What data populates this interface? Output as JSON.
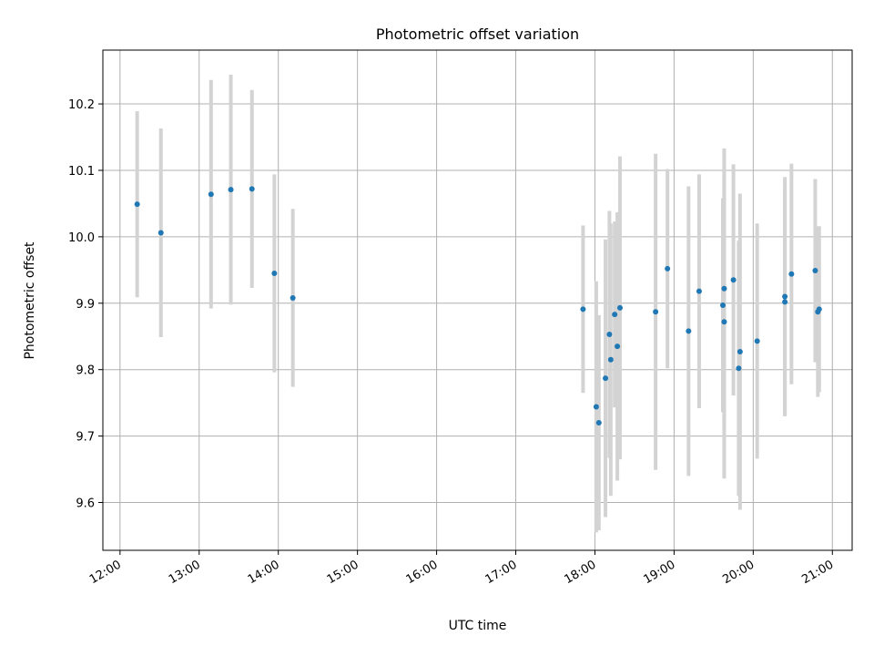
{
  "chart_data": {
    "type": "scatter",
    "title": "Photometric offset variation",
    "xlabel": "UTC time",
    "ylabel": "Photometric offset",
    "x_unit": "UTC time (HH:MM)",
    "xlim": [
      "11:47",
      "21:15"
    ],
    "ylim": [
      9.528,
      10.281
    ],
    "x_ticks": [
      "12:00",
      "13:00",
      "14:00",
      "15:00",
      "16:00",
      "17:00",
      "18:00",
      "19:00",
      "20:00",
      "21:00"
    ],
    "y_ticks": [
      9.6,
      9.7,
      9.8,
      9.9,
      10.0,
      10.1,
      10.2
    ],
    "y_tick_labels": [
      "9.6",
      "9.7",
      "9.8",
      "9.9",
      "10.0",
      "10.1",
      "10.2"
    ],
    "grid": true,
    "colors": {
      "points": "#1f77b4",
      "errorbars": "#d3d3d3",
      "grid": "#b0b0b0"
    },
    "points": [
      {
        "x": "12:13",
        "y": 10.049,
        "yerr": 0.14
      },
      {
        "x": "12:31",
        "y": 10.006,
        "yerr": 0.157
      },
      {
        "x": "13:09",
        "y": 10.064,
        "yerr": 0.172
      },
      {
        "x": "13:24",
        "y": 10.071,
        "yerr": 0.173
      },
      {
        "x": "13:40",
        "y": 10.072,
        "yerr": 0.149
      },
      {
        "x": "13:57",
        "y": 9.945,
        "yerr": 0.149
      },
      {
        "x": "14:11",
        "y": 9.908,
        "yerr": 0.134
      },
      {
        "x": "17:51",
        "y": 9.891,
        "yerr": 0.126
      },
      {
        "x": "18:01",
        "y": 9.744,
        "yerr": 0.189
      },
      {
        "x": "18:03",
        "y": 9.72,
        "yerr": 0.162
      },
      {
        "x": "18:08",
        "y": 9.787,
        "yerr": 0.209
      },
      {
        "x": "18:11",
        "y": 9.853,
        "yerr": 0.186
      },
      {
        "x": "18:12",
        "y": 9.815,
        "yerr": 0.205
      },
      {
        "x": "18:15",
        "y": 9.883,
        "yerr": 0.14
      },
      {
        "x": "18:17",
        "y": 9.835,
        "yerr": 0.202
      },
      {
        "x": "18:19",
        "y": 9.893,
        "yerr": 0.228
      },
      {
        "x": "18:46",
        "y": 9.887,
        "yerr": 0.238
      },
      {
        "x": "18:55",
        "y": 9.952,
        "yerr": 0.15
      },
      {
        "x": "19:11",
        "y": 9.858,
        "yerr": 0.218
      },
      {
        "x": "19:19",
        "y": 9.918,
        "yerr": 0.176
      },
      {
        "x": "19:37",
        "y": 9.897,
        "yerr": 0.161
      },
      {
        "x": "19:38",
        "y": 9.872,
        "yerr": 0.236
      },
      {
        "x": "19:38",
        "y": 9.922,
        "yerr": 0.211
      },
      {
        "x": "19:45",
        "y": 9.935,
        "yerr": 0.174
      },
      {
        "x": "19:49",
        "y": 9.802,
        "yerr": 0.192
      },
      {
        "x": "19:50",
        "y": 9.827,
        "yerr": 0.238
      },
      {
        "x": "20:03",
        "y": 9.843,
        "yerr": 0.177
      },
      {
        "x": "20:24",
        "y": 9.902,
        "yerr": 0.172
      },
      {
        "x": "20:24",
        "y": 9.91,
        "yerr": 0.18
      },
      {
        "x": "20:29",
        "y": 9.944,
        "yerr": 0.166
      },
      {
        "x": "20:47",
        "y": 9.949,
        "yerr": 0.138
      },
      {
        "x": "20:49",
        "y": 9.887,
        "yerr": 0.128
      },
      {
        "x": "20:50",
        "y": 9.891,
        "yerr": 0.125
      }
    ]
  }
}
